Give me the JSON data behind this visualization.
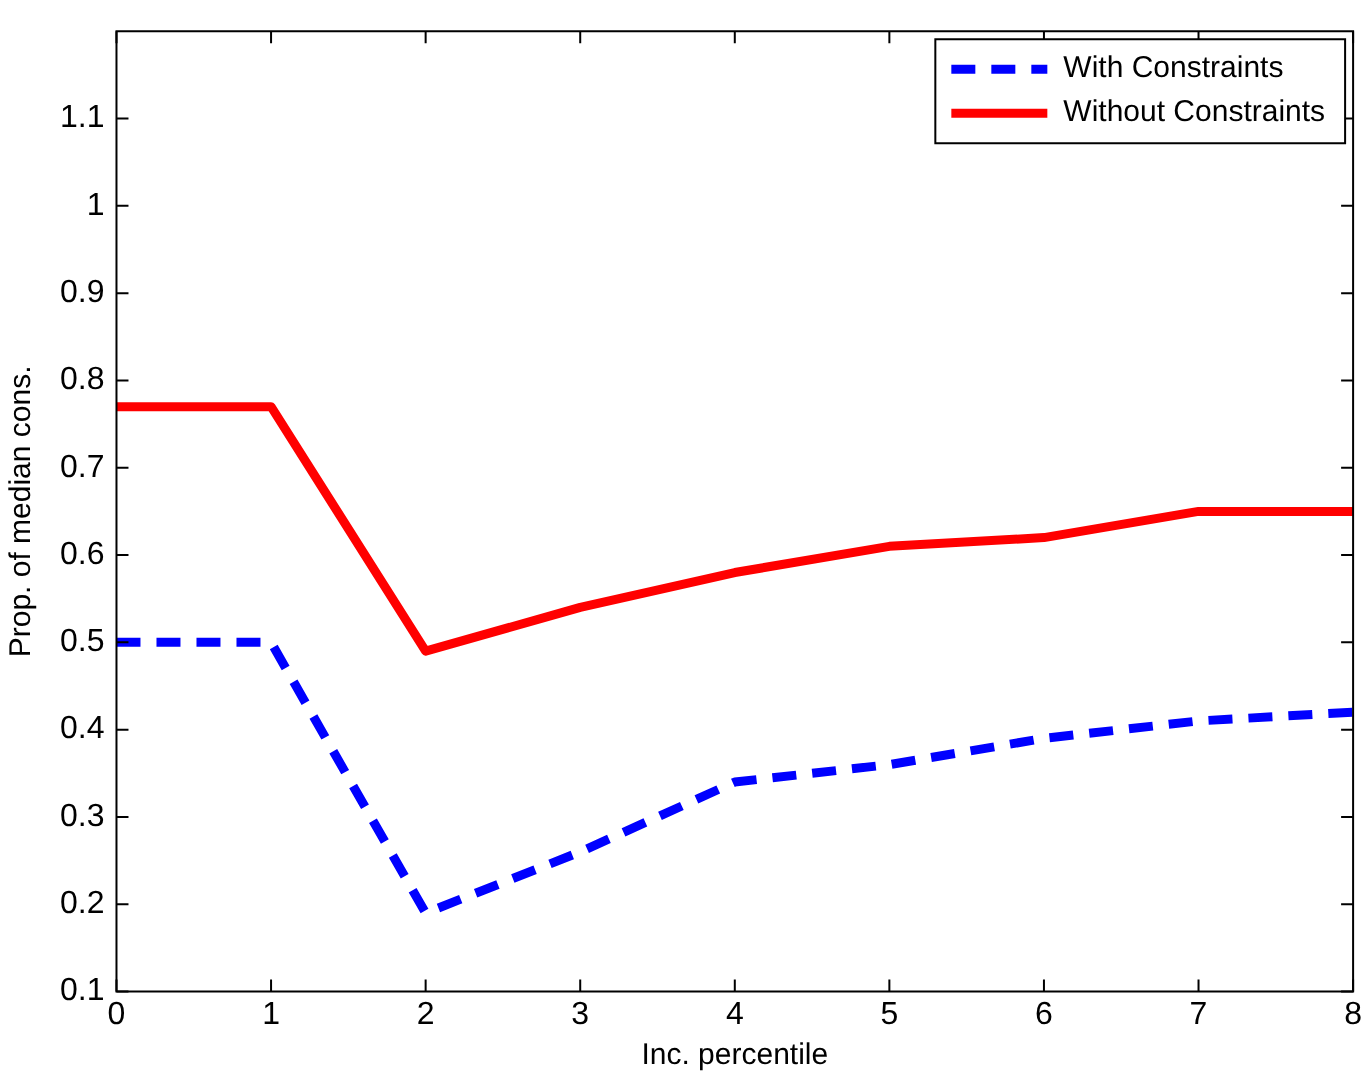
{
  "chart_data": {
    "type": "line",
    "xlabel": "Inc. percentile",
    "ylabel": "Prop. of median cons.",
    "x": [
      0,
      1,
      2,
      3,
      4,
      5,
      6,
      7,
      8
    ],
    "series": [
      {
        "name": "With Constraints",
        "color": "#0000ff",
        "line_style": "dashed",
        "values": [
          0.5,
          0.5,
          0.19,
          0.26,
          0.34,
          0.36,
          0.39,
          0.41,
          0.42
        ]
      },
      {
        "name": "Without Constraints",
        "color": "#ff0000",
        "line_style": "solid",
        "values": [
          0.77,
          0.77,
          0.49,
          0.54,
          0.58,
          0.61,
          0.62,
          0.65,
          0.65
        ]
      }
    ],
    "xlim": [
      0,
      8
    ],
    "xticks": [
      0,
      1,
      2,
      3,
      4,
      5,
      6,
      7,
      8
    ],
    "ylim": [
      0.1,
      1.2
    ],
    "yticks": [
      0.1,
      0.2,
      0.3,
      0.4,
      0.5,
      0.6,
      0.7,
      0.8,
      0.9,
      1,
      1.1
    ],
    "grid": false,
    "legend": "top right",
    "marker": "none"
  }
}
